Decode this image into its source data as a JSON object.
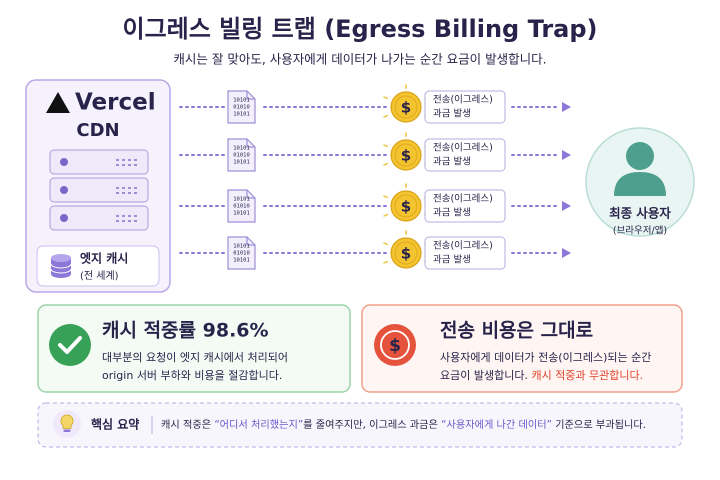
{
  "header": {
    "title": "이그레스 빌링 트랩 (Egress Billing Trap)",
    "subtitle": "캐시는 잘 맞아도, 사용자에게 데이터가 나가는 순간 요금이 발생합니다."
  },
  "source": {
    "logo": "Vercel",
    "label": "CDN",
    "cache": {
      "title": "엣지 캐시",
      "note": "(전 세계)"
    }
  },
  "flows": [
    {
      "file": [
        "10101",
        "01010",
        "10101"
      ],
      "coin": "$",
      "label": [
        "전송(이그레스)",
        "과금 발생"
      ]
    },
    {
      "file": [
        "10101",
        "01010",
        "10101"
      ],
      "coin": "$",
      "label": [
        "전송(이그레스)",
        "과금 발생"
      ]
    },
    {
      "file": [
        "10101",
        "01010",
        "10101"
      ],
      "coin": "$",
      "label": [
        "전송(이그레스)",
        "과금 발생"
      ]
    },
    {
      "file": [
        "10101",
        "01010",
        "10101"
      ],
      "coin": "$",
      "label": [
        "전송(이그레스)",
        "과금 발생"
      ]
    }
  ],
  "destination": {
    "title": "최종 사용자",
    "note": "(브라우저/앱)"
  },
  "cards": [
    {
      "title": "캐시 적중률 98.6%",
      "lines": [
        [
          {
            "text": "대부분의 요청이 엣지 캐시에서 처리되어"
          }
        ],
        [
          {
            "text": "origin 서버 부하와 비용을 절감합니다."
          }
        ]
      ]
    },
    {
      "icon": "$",
      "title": "전송 비용은 그대로",
      "lines": [
        [
          {
            "text": "사용자에게 데이터가 전송(이그레스)되는 순간"
          }
        ],
        [
          {
            "text": "요금이 발생합니다. "
          },
          {
            "text": "캐시 적중과 무관합니다.",
            "em": true
          }
        ]
      ]
    }
  ],
  "summary": {
    "label": "핵심 요약",
    "parts": [
      {
        "text": "캐시 적중은 "
      },
      {
        "text": "“어디서 처리했는지”",
        "em": true
      },
      {
        "text": "를 줄여주지만, 이그레스 과금은 "
      },
      {
        "text": "“사용자에게 나간 데이터”",
        "em": true
      },
      {
        "text": " 기준으로 부과됩니다."
      }
    ]
  }
}
